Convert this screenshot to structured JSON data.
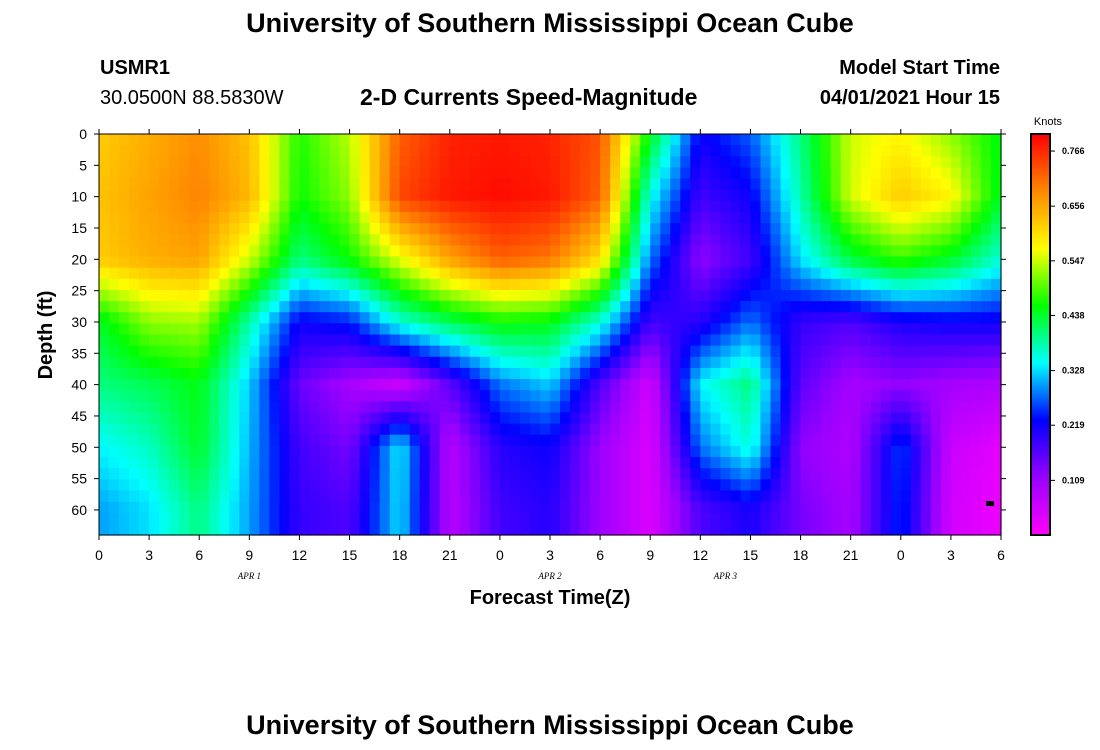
{
  "header": {
    "title": "University of Southern Mississippi Ocean Cube",
    "station_id": "USMR1",
    "station_coords": "30.0500N  88.5830W",
    "subtitle": "2-D Currents Speed-Magnitude",
    "model_start_label": "Model Start Time",
    "model_start_value": "04/01/2021 Hour 15"
  },
  "footer": {
    "title": "University of Southern Mississippi Ocean Cube"
  },
  "chart_data": {
    "type": "heatmap",
    "xlabel": "Forecast Time(Z)",
    "ylabel": "Depth (ft)",
    "x_tick_labels": [
      "0",
      "3",
      "6",
      "9",
      "12",
      "15",
      "18",
      "21",
      "0",
      "3",
      "6",
      "9",
      "12",
      "15",
      "18",
      "21",
      "0",
      "3",
      "6"
    ],
    "date_labels": [
      {
        "label": "APR 1",
        "tick_index": 6
      },
      {
        "label": "APR 2",
        "tick_index": 18
      },
      {
        "label": "APR 3",
        "tick_index": 25
      }
    ],
    "y_tick_labels": [
      "0",
      "5",
      "10",
      "15",
      "20",
      "25",
      "30",
      "35",
      "40",
      "45",
      "50",
      "55",
      "60"
    ],
    "ylim": [
      0,
      64
    ],
    "x_hours_range": [
      0,
      54
    ],
    "colorbar": {
      "unit": "Knots",
      "tick_labels": [
        "0.766",
        "0.656",
        "0.547",
        "0.438",
        "0.328",
        "0.219",
        "0.109"
      ],
      "tick_values": [
        0.766,
        0.656,
        0.547,
        0.438,
        0.328,
        0.219,
        0.109
      ],
      "range": [
        0.0,
        0.8
      ],
      "colors": [
        "#ff00ff",
        "#9900ff",
        "#0000ff",
        "#00ffff",
        "#00ff00",
        "#ffff00",
        "#ff8800",
        "#ff0000"
      ]
    },
    "grid": false,
    "depths_ft": [
      0,
      10,
      20,
      30,
      40,
      50,
      60
    ],
    "hours": [
      0,
      3,
      6,
      9,
      12,
      15,
      18,
      21,
      24,
      27,
      30,
      33,
      36,
      39,
      42,
      45,
      48,
      51,
      54
    ],
    "values": [
      [
        0.62,
        0.65,
        0.68,
        0.63,
        0.47,
        0.54,
        0.72,
        0.77,
        0.78,
        0.77,
        0.73,
        0.45,
        0.22,
        0.27,
        0.4,
        0.55,
        0.58,
        0.52,
        0.45
      ],
      [
        0.63,
        0.66,
        0.69,
        0.64,
        0.46,
        0.52,
        0.74,
        0.78,
        0.79,
        0.78,
        0.72,
        0.35,
        0.18,
        0.22,
        0.38,
        0.55,
        0.62,
        0.58,
        0.44
      ],
      [
        0.62,
        0.65,
        0.66,
        0.55,
        0.4,
        0.46,
        0.56,
        0.66,
        0.72,
        0.7,
        0.6,
        0.28,
        0.12,
        0.18,
        0.33,
        0.43,
        0.48,
        0.44,
        0.36
      ],
      [
        0.44,
        0.52,
        0.53,
        0.38,
        0.22,
        0.24,
        0.36,
        0.42,
        0.46,
        0.45,
        0.36,
        0.18,
        0.2,
        0.28,
        0.19,
        0.17,
        0.21,
        0.22,
        0.22
      ],
      [
        0.4,
        0.42,
        0.45,
        0.32,
        0.15,
        0.1,
        0.06,
        0.16,
        0.28,
        0.32,
        0.17,
        0.05,
        0.34,
        0.4,
        0.16,
        0.1,
        0.12,
        0.1,
        0.09
      ],
      [
        0.34,
        0.37,
        0.44,
        0.31,
        0.18,
        0.14,
        0.34,
        0.08,
        0.2,
        0.22,
        0.11,
        0.04,
        0.28,
        0.36,
        0.12,
        0.09,
        0.26,
        0.06,
        0.03
      ],
      [
        0.3,
        0.33,
        0.4,
        0.3,
        0.19,
        0.17,
        0.33,
        0.08,
        0.18,
        0.2,
        0.11,
        0.04,
        0.17,
        0.21,
        0.14,
        0.1,
        0.25,
        0.05,
        0.02
      ]
    ]
  }
}
